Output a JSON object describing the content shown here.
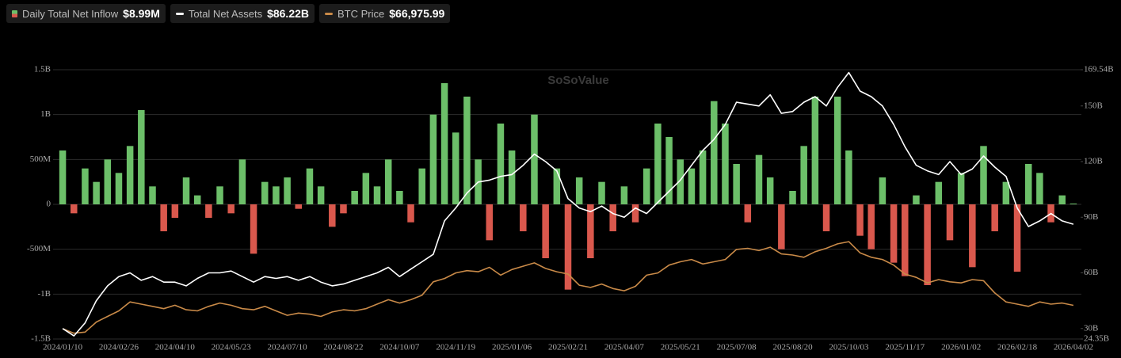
{
  "chart_data": {
    "type": "bar-line",
    "watermark": "SoSoValue",
    "categories": [
      "2024/01/10",
      null,
      null,
      null,
      null,
      "2024/02/26",
      null,
      null,
      null,
      null,
      "2024/04/10",
      null,
      null,
      null,
      null,
      "2024/05/23",
      null,
      null,
      null,
      null,
      "2024/07/10",
      null,
      null,
      null,
      null,
      "2024/08/22",
      null,
      null,
      null,
      null,
      "2024/10/07",
      null,
      null,
      null,
      null,
      "2024/11/19",
      null,
      null,
      null,
      null,
      "2025/01/06",
      null,
      null,
      null,
      null,
      "2025/02/21",
      null,
      null,
      null,
      null,
      "2025/04/07",
      null,
      null,
      null,
      null,
      "2025/05/21",
      null,
      null,
      null,
      null,
      "2025/07/08",
      null,
      null,
      null,
      null,
      "2025/08/20",
      null,
      null,
      null,
      null,
      "2025/10/03",
      null,
      null,
      null,
      null,
      "2025/11/17",
      null,
      null,
      null,
      null,
      "2026/01/02",
      null,
      null,
      null,
      null,
      "2026/02/18",
      null,
      null,
      null,
      null,
      "2026/04/02"
    ],
    "ylim": [
      -1500,
      1500
    ],
    "yticks": [
      {
        "value": -1500,
        "label": "-1.5B"
      },
      {
        "value": -1000,
        "label": "-1B"
      },
      {
        "value": -500,
        "label": "-500M"
      },
      0,
      {
        "value": 500,
        "label": "500M"
      },
      {
        "value": 1000,
        "label": "1B"
      },
      {
        "value": 1500,
        "label": "1.5B"
      }
    ],
    "y2lim": [
      24.35,
      169.54
    ],
    "y2ticks": [
      {
        "value": 24.35,
        "label": "24.35B"
      },
      {
        "value": 30,
        "label": "30B"
      },
      {
        "value": 60,
        "label": "60B"
      },
      {
        "value": 90,
        "label": "90B"
      },
      {
        "value": 120,
        "label": "120B"
      },
      {
        "value": 150,
        "label": "150B"
      },
      {
        "value": 169.54,
        "label": "169.54B"
      }
    ],
    "y3lim": [
      36800,
      278000
    ],
    "grid": true,
    "series": [
      {
        "name": "Daily Total Net Inflow",
        "header_value": "$8.99M",
        "type": "bar",
        "color": "#6cbf69",
        "negative_color": "#d9584d",
        "values": [
          600,
          -100,
          400,
          250,
          500,
          350,
          650,
          1050,
          200,
          -300,
          -150,
          300,
          100,
          -150,
          200,
          -100,
          500,
          -550,
          250,
          200,
          300,
          -50,
          400,
          200,
          -250,
          -100,
          150,
          350,
          200,
          500,
          150,
          -200,
          400,
          1000,
          1350,
          800,
          1200,
          500,
          -400,
          900,
          600,
          -300,
          1000,
          -600,
          400,
          -950,
          300,
          -600,
          250,
          -300,
          200,
          -200,
          400,
          900,
          750,
          500,
          400,
          600,
          1150,
          900,
          450,
          -200,
          550,
          300,
          -500,
          150,
          650,
          1200,
          -300,
          1200,
          600,
          -350,
          -500,
          300,
          -650,
          -800,
          100,
          -900,
          250,
          -400,
          350,
          -700,
          650,
          -300,
          250,
          -750,
          450,
          350,
          -200,
          100,
          8.99
        ]
      },
      {
        "name": "Total Net Assets",
        "header_value": "$86.22B",
        "type": "line",
        "axis": "y2",
        "color": "#ffffff",
        "values": [
          30,
          26,
          33,
          45,
          53,
          58,
          60,
          56,
          58,
          55,
          55,
          53,
          57,
          60,
          60,
          61,
          58,
          55,
          58,
          57,
          58,
          56,
          58,
          55,
          53,
          54,
          56,
          58,
          60,
          63,
          58,
          62,
          66,
          70,
          88,
          95,
          103,
          109,
          110,
          112,
          113,
          118,
          124,
          120,
          115,
          100,
          95,
          93,
          96,
          92,
          90,
          95,
          92,
          98,
          104,
          110,
          118,
          126,
          132,
          140,
          152,
          151,
          150,
          156,
          146,
          147,
          152,
          155,
          150,
          160,
          168,
          158,
          155,
          150,
          140,
          128,
          118,
          115,
          113,
          120,
          113,
          116,
          123,
          117,
          112,
          95,
          85,
          88,
          92,
          88,
          86.22
        ]
      },
      {
        "name": "BTC Price",
        "header_value": "$66,975.99",
        "type": "line",
        "axis": "y3",
        "color": "#c98a48",
        "values": [
          46000,
          42000,
          43000,
          52000,
          57000,
          62000,
          70000,
          68000,
          66000,
          64000,
          67000,
          63000,
          62000,
          66000,
          69000,
          67000,
          64000,
          63000,
          66000,
          62000,
          58000,
          60000,
          59000,
          57000,
          61000,
          63000,
          62000,
          64000,
          68000,
          72000,
          69000,
          72000,
          76000,
          88000,
          91000,
          96000,
          98000,
          97000,
          101000,
          94000,
          99000,
          102000,
          105000,
          100000,
          97000,
          95000,
          85000,
          83000,
          86000,
          82000,
          80000,
          84000,
          94000,
          96000,
          103000,
          106000,
          108000,
          104000,
          106000,
          108000,
          117000,
          118000,
          116000,
          119000,
          113000,
          112000,
          110000,
          115000,
          118000,
          122000,
          124000,
          114000,
          110000,
          108000,
          103000,
          95000,
          92000,
          87000,
          90000,
          88000,
          87000,
          90000,
          89000,
          78000,
          70000,
          68000,
          66000,
          70000,
          68000,
          69000,
          66975.99
        ]
      }
    ]
  }
}
